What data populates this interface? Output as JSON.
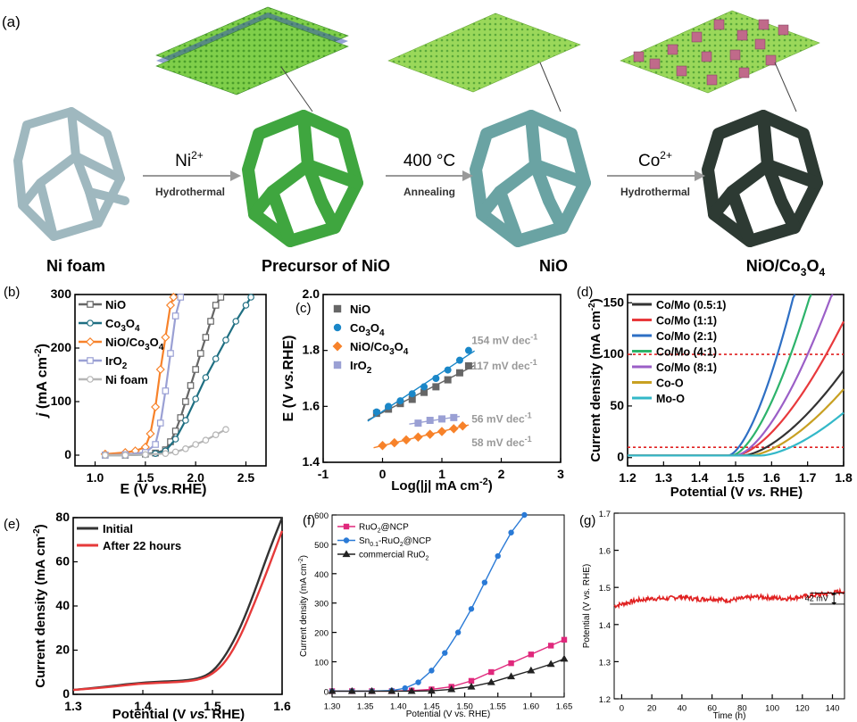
{
  "panel_a": {
    "label": "(a)",
    "stages": [
      {
        "name": "Ni  foam"
      },
      {
        "name": "Precursor of NiO"
      },
      {
        "name": "NiO"
      },
      {
        "name": "NiO/Co",
        "sub": "3",
        "name2": "O",
        "sub2": "4"
      }
    ],
    "arrows": [
      {
        "top": "Ni",
        "sup": "2+",
        "bottom": "Hydrothermal"
      },
      {
        "top": "400 °C",
        "bottom": "Annealing"
      },
      {
        "top": "Co",
        "sup": "2+",
        "bottom": "Hydrothermal"
      }
    ],
    "colors": {
      "foam": "#9fb8bf",
      "precursor": "#3fa63f",
      "nio": "#6aa3a3",
      "nioco": "#2d3a33"
    }
  },
  "chart_data": [
    {
      "panel": "(b)",
      "type": "line",
      "xlabel": "E (V vs.RHE)",
      "ylabel": "j (mA cm-2)",
      "xlim": [
        0.8,
        2.7
      ],
      "ylim": [
        -20,
        300
      ],
      "xticks": [
        "1.0",
        "1.5",
        "2.0",
        "2.5"
      ],
      "xtick_vals": [
        1.0,
        1.5,
        2.0,
        2.5
      ],
      "yticks": [
        "0",
        "100",
        "200",
        "300"
      ],
      "ytick_vals": [
        0,
        100,
        200,
        300
      ],
      "legend": "top-left",
      "series": [
        {
          "name": "NiO",
          "color": "#666666",
          "marker": "square",
          "x": [
            1.1,
            1.3,
            1.5,
            1.6,
            1.7,
            1.75,
            1.8,
            1.85,
            1.9,
            1.95,
            2.0,
            2.05,
            2.1,
            2.15,
            2.2,
            2.25
          ],
          "y": [
            0,
            0,
            2,
            4,
            10,
            25,
            45,
            70,
            100,
            130,
            160,
            190,
            220,
            250,
            280,
            295
          ]
        },
        {
          "name": "Co3O4",
          "color": "#1f6f82",
          "marker": "circle",
          "x": [
            1.1,
            1.3,
            1.5,
            1.6,
            1.7,
            1.8,
            1.9,
            2.0,
            2.1,
            2.2,
            2.3,
            2.4,
            2.5,
            2.55
          ],
          "y": [
            0,
            0,
            1,
            3,
            8,
            30,
            65,
            105,
            145,
            180,
            215,
            250,
            280,
            295
          ]
        },
        {
          "name": "NiO/Co3O4",
          "color": "#f7822a",
          "marker": "diamond",
          "x": [
            1.1,
            1.3,
            1.4,
            1.5,
            1.55,
            1.6,
            1.65,
            1.7,
            1.75,
            1.78
          ],
          "y": [
            2,
            5,
            8,
            15,
            40,
            90,
            160,
            220,
            280,
            295
          ]
        },
        {
          "name": "IrO2",
          "color": "#9aa0d4",
          "marker": "square",
          "x": [
            1.1,
            1.3,
            1.5,
            1.6,
            1.65,
            1.7,
            1.75,
            1.8,
            1.85
          ],
          "y": [
            0,
            1,
            5,
            20,
            60,
            120,
            190,
            260,
            295
          ]
        },
        {
          "name": "Ni foam",
          "color": "#b5b5b5",
          "marker": "circle",
          "x": [
            1.1,
            1.3,
            1.5,
            1.7,
            1.8,
            1.9,
            2.0,
            2.1,
            2.2,
            2.3
          ],
          "y": [
            0,
            0,
            1,
            3,
            6,
            12,
            20,
            28,
            38,
            48
          ]
        }
      ]
    },
    {
      "panel": "(c)",
      "type": "scatter",
      "xlabel": "Log(|j| mA cm-2)",
      "ylabel": "E (V vs.RHE)",
      "xlim": [
        -1,
        3
      ],
      "ylim": [
        1.4,
        2.0
      ],
      "xticks": [
        "-1",
        "0",
        "1",
        "2",
        "3"
      ],
      "xtick_vals": [
        -1,
        0,
        1,
        2,
        3
      ],
      "yticks": [
        "1.4",
        "1.6",
        "1.8",
        "2.0"
      ],
      "ytick_vals": [
        1.4,
        1.6,
        1.8,
        2.0
      ],
      "legend": "top-left",
      "series": [
        {
          "name": "NiO",
          "color": "#666666",
          "marker": "square",
          "slope_label": "117 mV dec-1",
          "x": [
            -0.1,
            0.1,
            0.3,
            0.5,
            0.7,
            0.9,
            1.1,
            1.3,
            1.45
          ],
          "y": [
            1.575,
            1.59,
            1.61,
            1.625,
            1.65,
            1.67,
            1.695,
            1.72,
            1.745
          ]
        },
        {
          "name": "Co3O4",
          "color": "#1a87c8",
          "marker": "circle",
          "slope_label": "154 mV dec-1",
          "x": [
            -0.1,
            0.1,
            0.3,
            0.5,
            0.7,
            0.9,
            1.1,
            1.3,
            1.45
          ],
          "y": [
            1.58,
            1.6,
            1.62,
            1.645,
            1.67,
            1.7,
            1.73,
            1.765,
            1.8
          ]
        },
        {
          "name": "NiO/Co3O4",
          "color": "#f7822a",
          "marker": "diamond",
          "slope_label": "58 mV dec-1",
          "x": [
            0.0,
            0.2,
            0.4,
            0.6,
            0.8,
            1.0,
            1.2,
            1.35
          ],
          "y": [
            1.46,
            1.47,
            1.48,
            1.49,
            1.5,
            1.51,
            1.52,
            1.53
          ]
        },
        {
          "name": "IrO2",
          "color": "#9aa0d4",
          "marker": "square",
          "slope_label": "56 mV dec-1",
          "x": [
            0.6,
            0.8,
            1.0,
            1.2
          ],
          "y": [
            1.54,
            1.55,
            1.555,
            1.56
          ]
        }
      ]
    },
    {
      "panel": "(d)",
      "type": "line",
      "xlabel": "Potential (V vs. RHE)",
      "ylabel": "Current density (mA cm-2)",
      "xlim": [
        1.2,
        1.8
      ],
      "ylim": [
        -8,
        158
      ],
      "xticks": [
        "1.2",
        "1.3",
        "1.4",
        "1.5",
        "1.6",
        "1.7",
        "1.8"
      ],
      "xtick_vals": [
        1.2,
        1.3,
        1.4,
        1.5,
        1.6,
        1.7,
        1.8
      ],
      "yticks": [
        "0",
        "50",
        "100",
        "150"
      ],
      "ytick_vals": [
        0,
        50,
        100,
        150
      ],
      "hlines": [
        10,
        100
      ],
      "legend": "top-left",
      "series": [
        {
          "name": "Co/Mo (0.5:1)",
          "color": "#333333",
          "onset": 1.52,
          "k": 3.2
        },
        {
          "name": "Co/Mo (1:1)",
          "color": "#e8393c",
          "onset": 1.5,
          "k": 4.5
        },
        {
          "name": "Co/Mo (2:1)",
          "color": "#2e6fc4",
          "onset": 1.48,
          "k": 12
        },
        {
          "name": "Co/Mo (4:1)",
          "color": "#2db36b",
          "onset": 1.49,
          "k": 9
        },
        {
          "name": "Co/Mo (8:1)",
          "color": "#9b5fc7",
          "onset": 1.5,
          "k": 6.5
        },
        {
          "name": "Co-O",
          "color": "#c8a022",
          "onset": 1.54,
          "k": 2.8
        },
        {
          "name": "Mo-O",
          "color": "#33b8c8",
          "onset": 1.57,
          "k": 2.2
        }
      ]
    },
    {
      "panel": "(e)",
      "type": "line",
      "xlabel": "Potential (V vs. RHE)",
      "ylabel": "Current density (mA cm-2)",
      "xlim": [
        1.3,
        1.6
      ],
      "ylim": [
        0,
        80
      ],
      "xticks": [
        "1.3",
        "1.4",
        "1.5",
        "1.6"
      ],
      "xtick_vals": [
        1.3,
        1.4,
        1.5,
        1.6
      ],
      "yticks": [
        "0",
        "20",
        "40",
        "60",
        "80"
      ],
      "ytick_vals": [
        0,
        20,
        40,
        60,
        80
      ],
      "legend": "top-left",
      "series": [
        {
          "name": "Initial",
          "color": "#333333",
          "x": [
            1.3,
            1.35,
            1.4,
            1.45,
            1.48,
            1.5,
            1.52,
            1.54,
            1.56,
            1.58,
            1.6
          ],
          "y": [
            2,
            3.5,
            5.5,
            6,
            7,
            10,
            18,
            30,
            46,
            64,
            80
          ]
        },
        {
          "name": "After 22 hours",
          "color": "#e63a3a",
          "x": [
            1.3,
            1.35,
            1.4,
            1.45,
            1.48,
            1.5,
            1.52,
            1.54,
            1.56,
            1.58,
            1.6
          ],
          "y": [
            2,
            3.2,
            5,
            5.5,
            6.5,
            9,
            15,
            26,
            41,
            57,
            74
          ]
        }
      ]
    },
    {
      "panel": "(f)",
      "type": "line",
      "xlabel": "Potential (V vs. RHE)",
      "ylabel": "Current density (mA cm-2)",
      "xlim": [
        1.3,
        1.65
      ],
      "ylim": [
        -20,
        600
      ],
      "xticks": [
        "1.30",
        "1.35",
        "1.40",
        "1.45",
        "1.50",
        "1.55",
        "1.60",
        "1.65"
      ],
      "xtick_vals": [
        1.3,
        1.35,
        1.4,
        1.45,
        1.5,
        1.55,
        1.6,
        1.65
      ],
      "yticks": [
        "0",
        "100",
        "200",
        "300",
        "400",
        "500",
        "600"
      ],
      "ytick_vals": [
        0,
        100,
        200,
        300,
        400,
        500,
        600
      ],
      "legend": "top-left",
      "series": [
        {
          "name": "RuO2@NCP",
          "color": "#e0287c",
          "marker": "square",
          "x": [
            1.3,
            1.33,
            1.36,
            1.39,
            1.42,
            1.45,
            1.48,
            1.51,
            1.54,
            1.57,
            1.6,
            1.63,
            1.65
          ],
          "y": [
            0,
            0,
            0,
            0,
            2,
            6,
            15,
            35,
            65,
            95,
            125,
            155,
            175
          ]
        },
        {
          "name": "Sn0.1-RuO2@NCP",
          "color": "#2a7ad6",
          "marker": "circle",
          "x": [
            1.3,
            1.33,
            1.36,
            1.39,
            1.41,
            1.43,
            1.45,
            1.47,
            1.49,
            1.51,
            1.53,
            1.55,
            1.57,
            1.59
          ],
          "y": [
            0,
            0,
            0,
            2,
            10,
            30,
            70,
            130,
            200,
            280,
            370,
            460,
            540,
            600
          ]
        },
        {
          "name": "commercial RuO2",
          "color": "#222222",
          "marker": "triangle",
          "x": [
            1.3,
            1.33,
            1.36,
            1.39,
            1.42,
            1.45,
            1.48,
            1.51,
            1.54,
            1.57,
            1.6,
            1.63,
            1.65
          ],
          "y": [
            0,
            0,
            0,
            0,
            0,
            1,
            6,
            15,
            30,
            50,
            70,
            92,
            110
          ]
        }
      ]
    },
    {
      "panel": "(g)",
      "type": "line",
      "xlabel": "Time (h)",
      "ylabel": "Potential (V vs. RHE)",
      "xlim": [
        -5,
        148
      ],
      "ylim": [
        1.2,
        1.7
      ],
      "xticks": [
        "0",
        "20",
        "40",
        "60",
        "80",
        "100",
        "120",
        "140"
      ],
      "xtick_vals": [
        0,
        20,
        40,
        60,
        80,
        100,
        120,
        140
      ],
      "yticks": [
        "1.2",
        "1.3",
        "1.4",
        "1.5",
        "1.6",
        "1.7"
      ],
      "ytick_vals": [
        1.2,
        1.3,
        1.4,
        1.5,
        1.6,
        1.7
      ],
      "annotation": "42 mV",
      "series": [
        {
          "name": "",
          "color": "#e02020",
          "x": [
            -5,
            0,
            10,
            20,
            30,
            40,
            50,
            60,
            70,
            80,
            90,
            100,
            110,
            120,
            130,
            140,
            148
          ],
          "y": [
            1.45,
            1.455,
            1.465,
            1.47,
            1.47,
            1.475,
            1.468,
            1.47,
            1.465,
            1.47,
            1.475,
            1.472,
            1.47,
            1.475,
            1.48,
            1.485,
            1.49
          ]
        }
      ]
    }
  ]
}
